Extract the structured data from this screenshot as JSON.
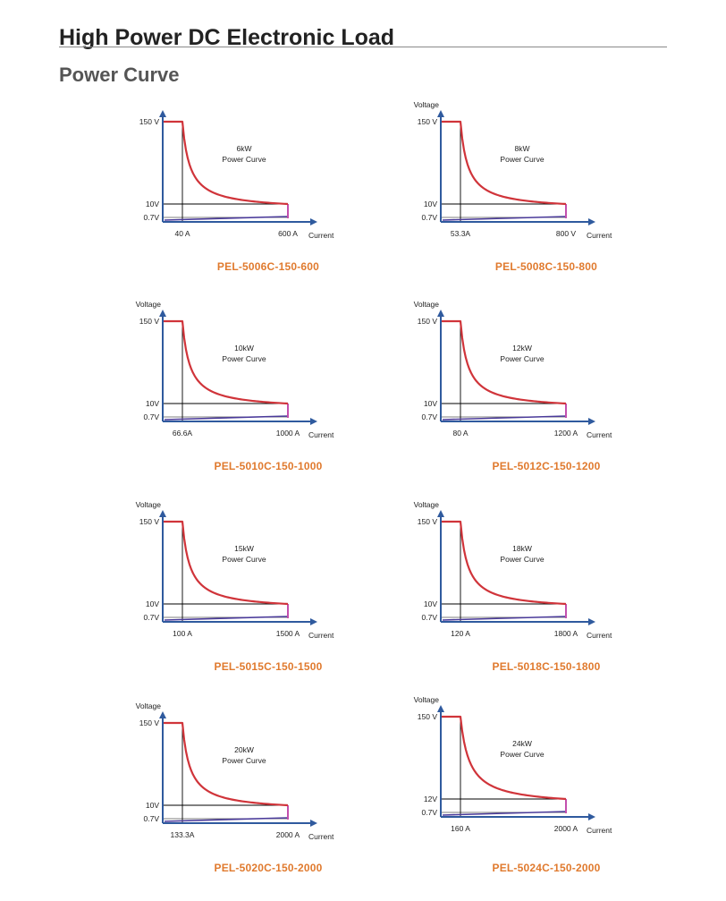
{
  "page": {
    "title": "High Power DC Electronic Load",
    "subtitle": "Power Curve"
  },
  "colors": {
    "axis": "#2f5a9e",
    "curve": "#d0343a",
    "low_line": "#4a3a9a",
    "right_edge": "#c34fae",
    "model_label": "#e07a2e",
    "guide": "#000000"
  },
  "chart_data": [
    {
      "type": "line",
      "model": "PEL-5006C-150-600",
      "ylabel": "",
      "xlabel": "Current",
      "power_line1": "6kW",
      "power_line2": "Power Curve",
      "v_max": 150,
      "v_max_label": "150 V",
      "v_mid": 10,
      "v_mid_label": "10V",
      "v_min": 0.7,
      "v_min_label": "0.7V",
      "i_knee": 40,
      "i_knee_label": "40 A",
      "i_max": 600,
      "i_max_label": "600 A"
    },
    {
      "type": "line",
      "model": "PEL-5008C-150-800",
      "ylabel": "Voltage",
      "xlabel": "Current",
      "power_line1": "8kW",
      "power_line2": "Power Curve",
      "v_max": 150,
      "v_max_label": "150 V",
      "v_mid": 10,
      "v_mid_label": "10V",
      "v_min": 0.7,
      "v_min_label": "0.7V",
      "i_knee": 53.3,
      "i_knee_label": "53.3A",
      "i_max": 800,
      "i_max_label": "800 V"
    },
    {
      "type": "line",
      "model": "PEL-5010C-150-1000",
      "ylabel": "Voltage",
      "xlabel": "Current",
      "power_line1": "10kW",
      "power_line2": "Power Curve",
      "v_max": 150,
      "v_max_label": "150 V",
      "v_mid": 10,
      "v_mid_label": "10V",
      "v_min": 0.7,
      "v_min_label": "0.7V",
      "i_knee": 66.6,
      "i_knee_label": "66.6A",
      "i_max": 1000,
      "i_max_label": "1000 A"
    },
    {
      "type": "line",
      "model": "PEL-5012C-150-1200",
      "ylabel": "Voltage",
      "xlabel": "Current",
      "power_line1": "12kW",
      "power_line2": "Power Curve",
      "v_max": 150,
      "v_max_label": "150 V",
      "v_mid": 10,
      "v_mid_label": "10V",
      "v_min": 0.7,
      "v_min_label": "0.7V",
      "i_knee": 80,
      "i_knee_label": "80 A",
      "i_max": 1200,
      "i_max_label": "1200 A"
    },
    {
      "type": "line",
      "model": "PEL-5015C-150-1500",
      "ylabel": "Voltage",
      "xlabel": "Current",
      "power_line1": "15kW",
      "power_line2": "Power Curve",
      "v_max": 150,
      "v_max_label": "150 V",
      "v_mid": 10,
      "v_mid_label": "10V",
      "v_min": 0.7,
      "v_min_label": "0.7V",
      "i_knee": 100,
      "i_knee_label": "100 A",
      "i_max": 1500,
      "i_max_label": "1500 A"
    },
    {
      "type": "line",
      "model": "PEL-5018C-150-1800",
      "ylabel": "Voltage",
      "xlabel": "Current",
      "power_line1": "18kW",
      "power_line2": "Power Curve",
      "v_max": 150,
      "v_max_label": "150 V",
      "v_mid": 10,
      "v_mid_label": "10V",
      "v_min": 0.7,
      "v_min_label": "0.7V",
      "i_knee": 120,
      "i_knee_label": "120 A",
      "i_max": 1800,
      "i_max_label": "1800 A"
    },
    {
      "type": "line",
      "model": "PEL-5020C-150-2000",
      "ylabel": "Voltage",
      "xlabel": "Current",
      "power_line1": "20kW",
      "power_line2": "Power Curve",
      "v_max": 150,
      "v_max_label": "150 V",
      "v_mid": 10,
      "v_mid_label": "10V",
      "v_min": 0.7,
      "v_min_label": "0.7V",
      "i_knee": 133.3,
      "i_knee_label": "133.3A",
      "i_max": 2000,
      "i_max_label": "2000 A"
    },
    {
      "type": "line",
      "model": "PEL-5024C-150-2000",
      "ylabel": "Voltage",
      "xlabel": "Current",
      "power_line1": "24kW",
      "power_line2": "Power Curve",
      "v_max": 150,
      "v_max_label": "150 V",
      "v_mid": 12,
      "v_mid_label": "12V",
      "v_min": 0.7,
      "v_min_label": "0.7V",
      "i_knee": 160,
      "i_knee_label": "160 A",
      "i_max": 2000,
      "i_max_label": "2000 A"
    }
  ]
}
